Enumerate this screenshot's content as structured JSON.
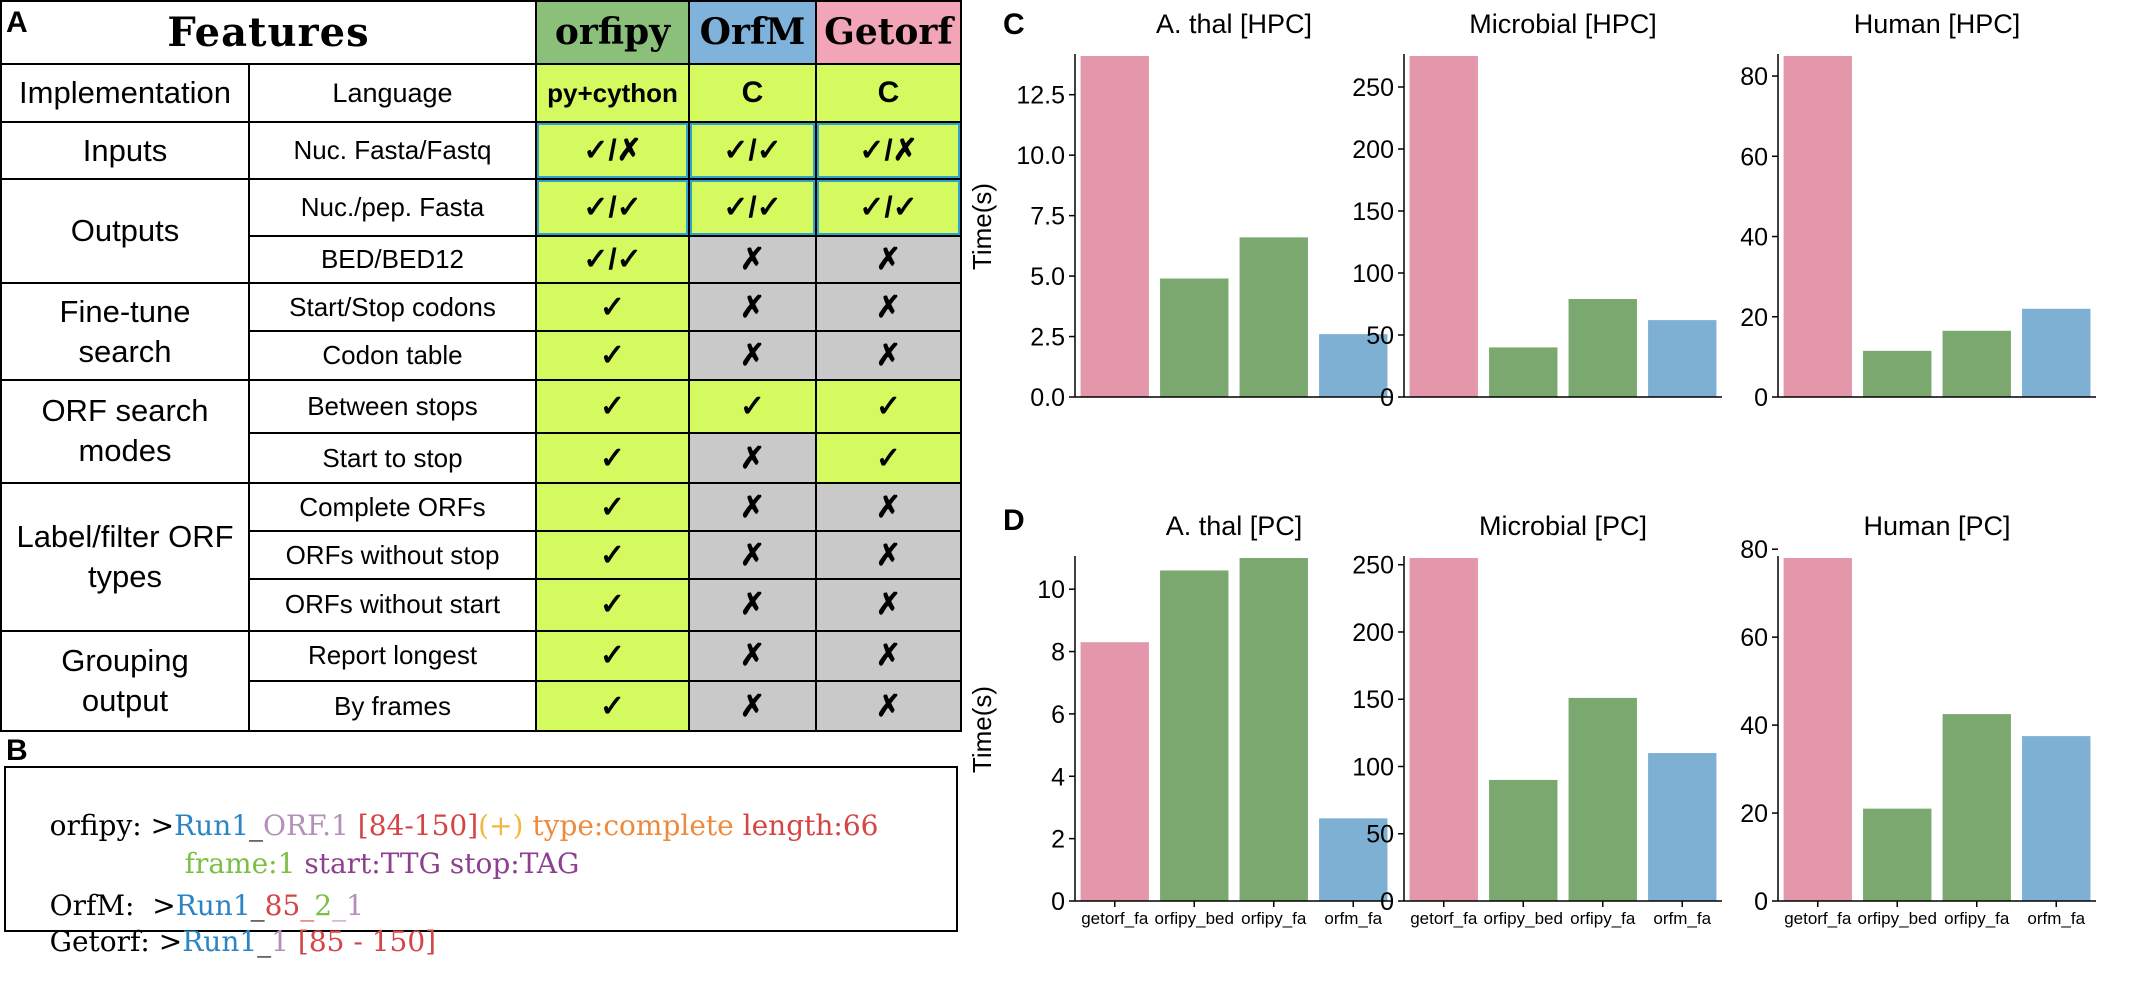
{
  "panels": {
    "a": "A",
    "b": "B",
    "c": "C",
    "d": "D"
  },
  "table": {
    "header_features": "Features",
    "tools": [
      {
        "name": "orfipy",
        "color": "#8bc07a"
      },
      {
        "name": "OrfM",
        "color": "#80b3dc"
      },
      {
        "name": "Getorf",
        "color": "#f2a5b6"
      }
    ],
    "implementation_label": "Implementation",
    "language_label": "Language",
    "languages": [
      "py+cython",
      "C",
      "C"
    ],
    "groups": [
      {
        "label": "Inputs",
        "rows": [
          {
            "feature": "Nuc. Fasta/Fastq",
            "values": [
              "✓/✗",
              "✓/✓",
              "✓/✗"
            ],
            "supported": [
              true,
              true,
              true
            ]
          }
        ]
      },
      {
        "label": "Outputs",
        "rows": [
          {
            "feature": "Nuc./pep. Fasta",
            "values": [
              "✓/✓",
              "✓/✓",
              "✓/✓"
            ],
            "supported": [
              true,
              true,
              true
            ]
          },
          {
            "feature": "BED/BED12",
            "values": [
              "✓/✓",
              "✗",
              "✗"
            ],
            "supported": [
              true,
              false,
              false
            ]
          }
        ]
      },
      {
        "label": "Fine-tune search",
        "rows": [
          {
            "feature": "Start/Stop codons",
            "values": [
              "✓",
              "✗",
              "✗"
            ],
            "supported": [
              true,
              false,
              false
            ]
          },
          {
            "feature": "Codon table",
            "values": [
              "✓",
              "✗",
              "✗"
            ],
            "supported": [
              true,
              false,
              false
            ]
          }
        ]
      },
      {
        "label": "ORF search modes",
        "rows": [
          {
            "feature": "Between stops",
            "values": [
              "✓",
              "✓",
              "✓"
            ],
            "supported": [
              true,
              true,
              true
            ]
          },
          {
            "feature": "Start to stop",
            "values": [
              "✓",
              "✗",
              "✓"
            ],
            "supported": [
              true,
              false,
              true
            ]
          }
        ]
      },
      {
        "label": "Label/filter ORF types",
        "rows": [
          {
            "feature": "Complete ORFs",
            "values": [
              "✓",
              "✗",
              "✗"
            ],
            "supported": [
              true,
              false,
              false
            ]
          },
          {
            "feature": "ORFs without stop",
            "values": [
              "✓",
              "✗",
              "✗"
            ],
            "supported": [
              true,
              false,
              false
            ]
          },
          {
            "feature": "ORFs without start",
            "values": [
              "✓",
              "✗",
              "✗"
            ],
            "supported": [
              true,
              false,
              false
            ]
          }
        ]
      },
      {
        "label": "Grouping output",
        "rows": [
          {
            "feature": "Report longest",
            "values": [
              "✓",
              "✗",
              "✗"
            ],
            "supported": [
              true,
              false,
              false
            ]
          },
          {
            "feature": "By frames",
            "values": [
              "✓",
              "✗",
              "✗"
            ],
            "supported": [
              true,
              false,
              false
            ]
          }
        ]
      }
    ]
  },
  "headers_b": {
    "orfipy": {
      "label": "orfipy: >",
      "run": "Run1",
      "sep": "_",
      "orf": "ORF.1",
      "range": " [84-150]",
      "strand": "(+)",
      "type": " type:complete",
      "length": " length:66",
      "frame": "frame:1",
      "start": " start:TTG",
      "stop": " stop:TAG"
    },
    "orfm": {
      "label": "OrfM:  >",
      "run": "Run1",
      "sep": "_",
      "pos": "85",
      "u1": "_",
      "frame": "2",
      "u2": "_",
      "num": "1"
    },
    "getorf": {
      "label": "Getorf: >",
      "run": "Run1",
      "sep": "_",
      "num": "1",
      "range": " [85 - 150]"
    }
  },
  "colors": {
    "getorf": "#e497aa",
    "orfipy": "#7aa86e",
    "orfm": "#7eb0d3",
    "run": "#2b84c6",
    "orf": "#b48fb8",
    "range": "#d64545",
    "strand": "#f0b840",
    "type": "#ef8a3c",
    "frame": "#7cbf45",
    "codon": "#8e3f8f",
    "table_green": "#d4fa5f",
    "table_gray": "#c9c9c9"
  },
  "chart_data": [
    {
      "type": "bar",
      "panel": "C",
      "title": "A. thal [HPC]",
      "ylabel": "Time(s)",
      "categories": [
        "getorf_fa",
        "orfipy_bed",
        "orfipy_fa",
        "orfm_fa"
      ],
      "values": [
        14.1,
        4.9,
        6.6,
        2.6
      ],
      "ylim": [
        0,
        14.1
      ],
      "yticks": [
        0.0,
        2.5,
        5.0,
        7.5,
        10.0,
        12.5
      ],
      "ytick_labels": [
        "0.0",
        "2.5",
        "5.0",
        "7.5",
        "10.0",
        "12.5"
      ],
      "show_xticks": false
    },
    {
      "type": "bar",
      "panel": "C",
      "title": "Microbial [HPC]",
      "ylabel": "",
      "categories": [
        "getorf_fa",
        "orfipy_bed",
        "orfipy_fa",
        "orfm_fa"
      ],
      "values": [
        275,
        40,
        79,
        62
      ],
      "ylim": [
        0,
        275
      ],
      "yticks": [
        0,
        50,
        100,
        150,
        200,
        250
      ],
      "ytick_labels": [
        "0",
        "50",
        "100",
        "150",
        "200",
        "250"
      ],
      "show_xticks": false
    },
    {
      "type": "bar",
      "panel": "C",
      "title": "Human [HPC]",
      "ylabel": "",
      "categories": [
        "getorf_fa",
        "orfipy_bed",
        "orfipy_fa",
        "orfm_fa"
      ],
      "values": [
        85,
        11.5,
        16.5,
        22
      ],
      "ylim": [
        0,
        85
      ],
      "yticks": [
        0,
        20,
        40,
        60,
        80
      ],
      "ytick_labels": [
        "0",
        "20",
        "40",
        "60",
        "80"
      ],
      "show_xticks": false
    },
    {
      "type": "bar",
      "panel": "D",
      "title": "A. thal [PC]",
      "ylabel": "Time(s)",
      "categories": [
        "getorf_fa",
        "orfipy_bed",
        "orfipy_fa",
        "orfm_fa"
      ],
      "values": [
        8.3,
        10.6,
        11.0,
        2.65
      ],
      "ylim": [
        0,
        11.0
      ],
      "yticks": [
        0,
        2,
        4,
        6,
        8,
        10
      ],
      "ytick_labels": [
        "0",
        "2",
        "4",
        "6",
        "8",
        "10"
      ],
      "show_xticks": true
    },
    {
      "type": "bar",
      "panel": "D",
      "title": "Microbial [PC]",
      "ylabel": "",
      "categories": [
        "getorf_fa",
        "orfipy_bed",
        "orfipy_fa",
        "orfm_fa"
      ],
      "values": [
        255,
        90,
        151,
        110
      ],
      "ylim": [
        0,
        255
      ],
      "yticks": [
        0,
        50,
        100,
        150,
        200,
        250
      ],
      "ytick_labels": [
        "0",
        "50",
        "100",
        "150",
        "200",
        "250"
      ],
      "show_xticks": true
    },
    {
      "type": "bar",
      "panel": "D",
      "title": "Human [PC]",
      "ylabel": "",
      "categories": [
        "getorf_fa",
        "orfipy_bed",
        "orfipy_fa",
        "orfm_fa"
      ],
      "values": [
        78,
        21,
        42.5,
        37.5
      ],
      "ylim": [
        0,
        78
      ],
      "yticks": [
        0,
        20,
        40,
        60,
        80
      ],
      "ytick_labels": [
        "0",
        "20",
        "40",
        "60",
        "80"
      ],
      "show_xticks": true
    }
  ]
}
